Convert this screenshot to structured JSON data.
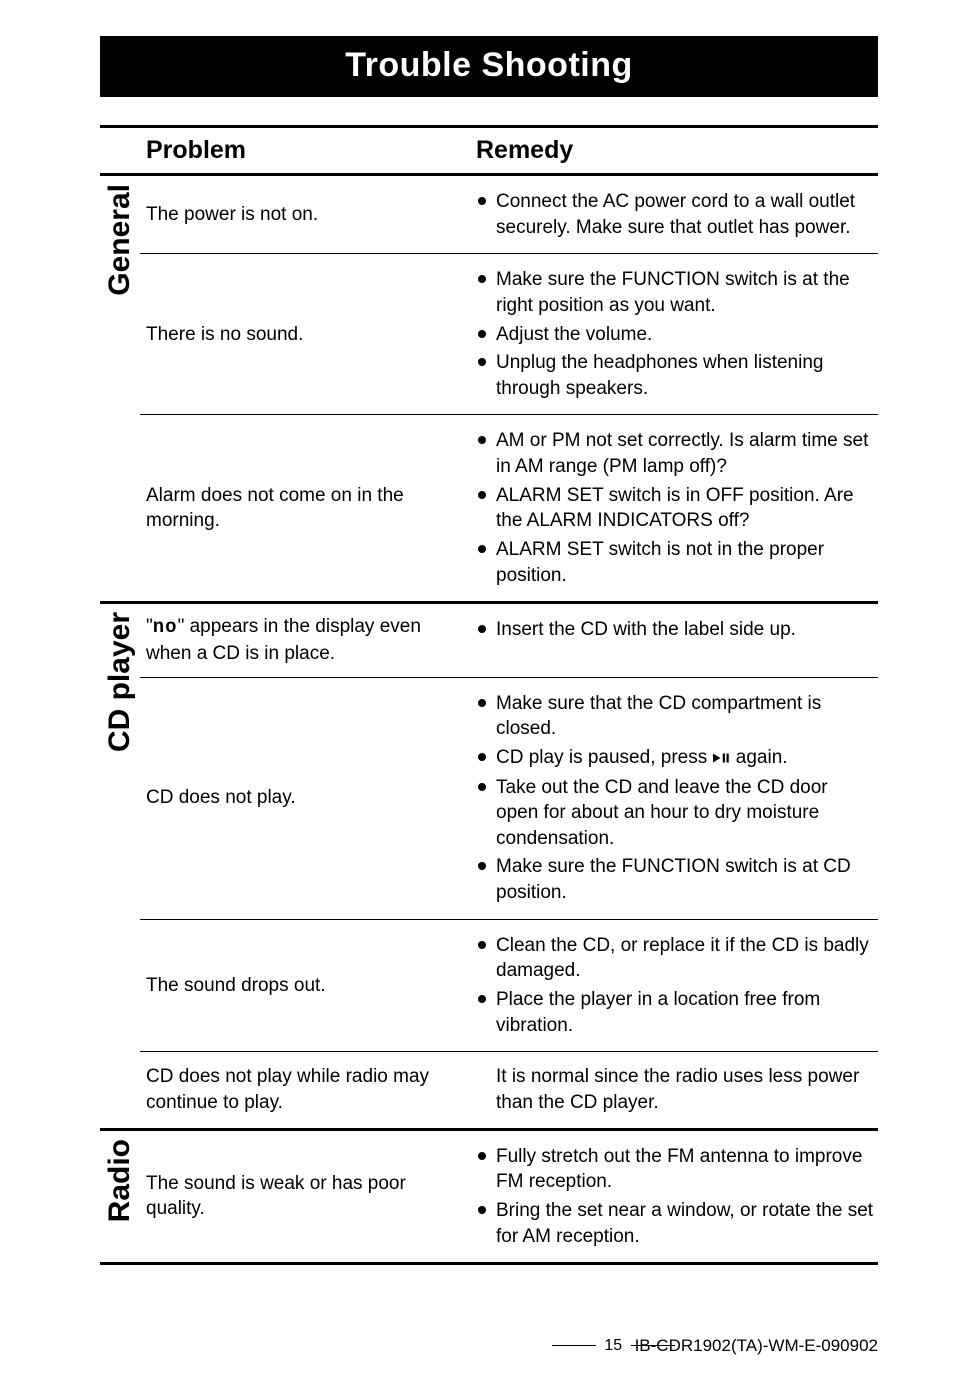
{
  "title": "Trouble Shooting",
  "header": {
    "problem": "Problem",
    "remedy": "Remedy"
  },
  "sections": [
    {
      "label": "General",
      "rows": [
        {
          "problem": "The power is not on.",
          "remedy_groups": [
            {
              "items": [
                "Connect the AC power cord to a wall outlet securely. Make sure that outlet has power."
              ]
            }
          ]
        },
        {
          "problem": "There is no sound.",
          "remedy_groups": [
            {
              "items": [
                "Make sure the FUNCTION switch is at the right position as you want.",
                "Adjust the volume.",
                "Unplug the headphones when listening through speakers."
              ]
            }
          ]
        },
        {
          "problem": "Alarm does not come on in the morning.",
          "remedy_groups": [
            {
              "items": [
                "AM or PM not set correctly. Is alarm time set in AM range (PM lamp off)?",
                "ALARM SET switch is in OFF position. Are the ALARM INDICATORS off?",
                "ALARM SET switch is not in the proper position."
              ]
            }
          ]
        }
      ]
    },
    {
      "label": "CD player",
      "rows": [
        {
          "problem_html": true,
          "problem_prefix": "\"",
          "problem_seg": "no",
          "problem_suffix": "\" appears in the display even when a CD is in place.",
          "remedy_groups": [
            {
              "items": [
                "Insert the CD with the label side up."
              ]
            }
          ]
        },
        {
          "problem": "CD does not play.",
          "remedy_groups": [
            {
              "items": [
                "Make sure that the CD compartment is closed.",
                {
                  "pre": "CD play is paused, press ",
                  "icon": "play-pause",
                  "post": " again."
                },
                "Take out the CD and leave the CD door open for about an hour to dry moisture condensation.",
                "Make sure the FUNCTION switch is at CD position."
              ]
            }
          ]
        },
        {
          "problem": "The sound drops out.",
          "remedy_groups": [
            {
              "items": [
                "Clean the CD, or replace it if the CD is badly damaged.",
                "Place the player in a location free from vibration."
              ]
            }
          ]
        },
        {
          "problem": "CD does not play while radio may continue to play.",
          "remedy_groups": [
            {
              "plain": "It is normal since the radio uses less power than the CD player."
            }
          ]
        }
      ]
    },
    {
      "label": "Radio",
      "rows": [
        {
          "problem": "The sound is weak or has poor quality.",
          "remedy_groups": [
            {
              "items": [
                "Fully stretch out the FM antenna to improve FM reception.",
                "Bring the set near a window, or rotate the set for AM reception."
              ]
            }
          ]
        }
      ]
    }
  ],
  "footer": {
    "page": "15",
    "doc": "IB-CDR1902(TA)-WM-E-090902"
  },
  "colors": {
    "bg": "#ffffff",
    "fg": "#000000"
  }
}
